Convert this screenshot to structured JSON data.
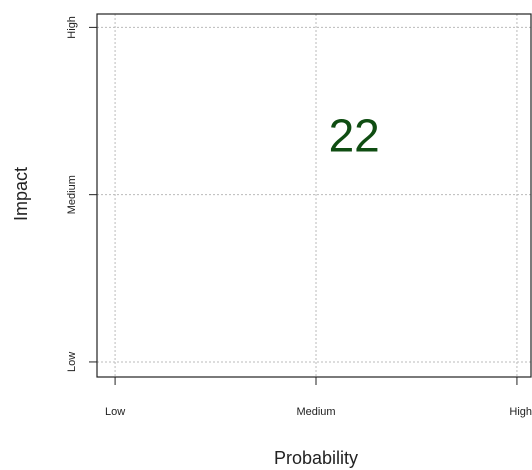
{
  "chart_data": {
    "type": "scatter",
    "x_label": "Probability",
    "y_label": "Impact",
    "xlim": [
      0.91,
      3.07
    ],
    "ylim": [
      0.91,
      3.08
    ],
    "xticks": [
      {
        "value": 1,
        "label": "Low"
      },
      {
        "value": 2,
        "label": "Medium"
      },
      {
        "value": 3,
        "label": "High"
      }
    ],
    "yticks": [
      {
        "value": 1,
        "label": "Low"
      },
      {
        "value": 2,
        "label": "Medium"
      },
      {
        "value": 3,
        "label": "High"
      }
    ],
    "grid": true,
    "annotations": [
      {
        "text": "22",
        "x": 2.19,
        "y": 2.33,
        "color": "#0f4d12"
      }
    ]
  }
}
